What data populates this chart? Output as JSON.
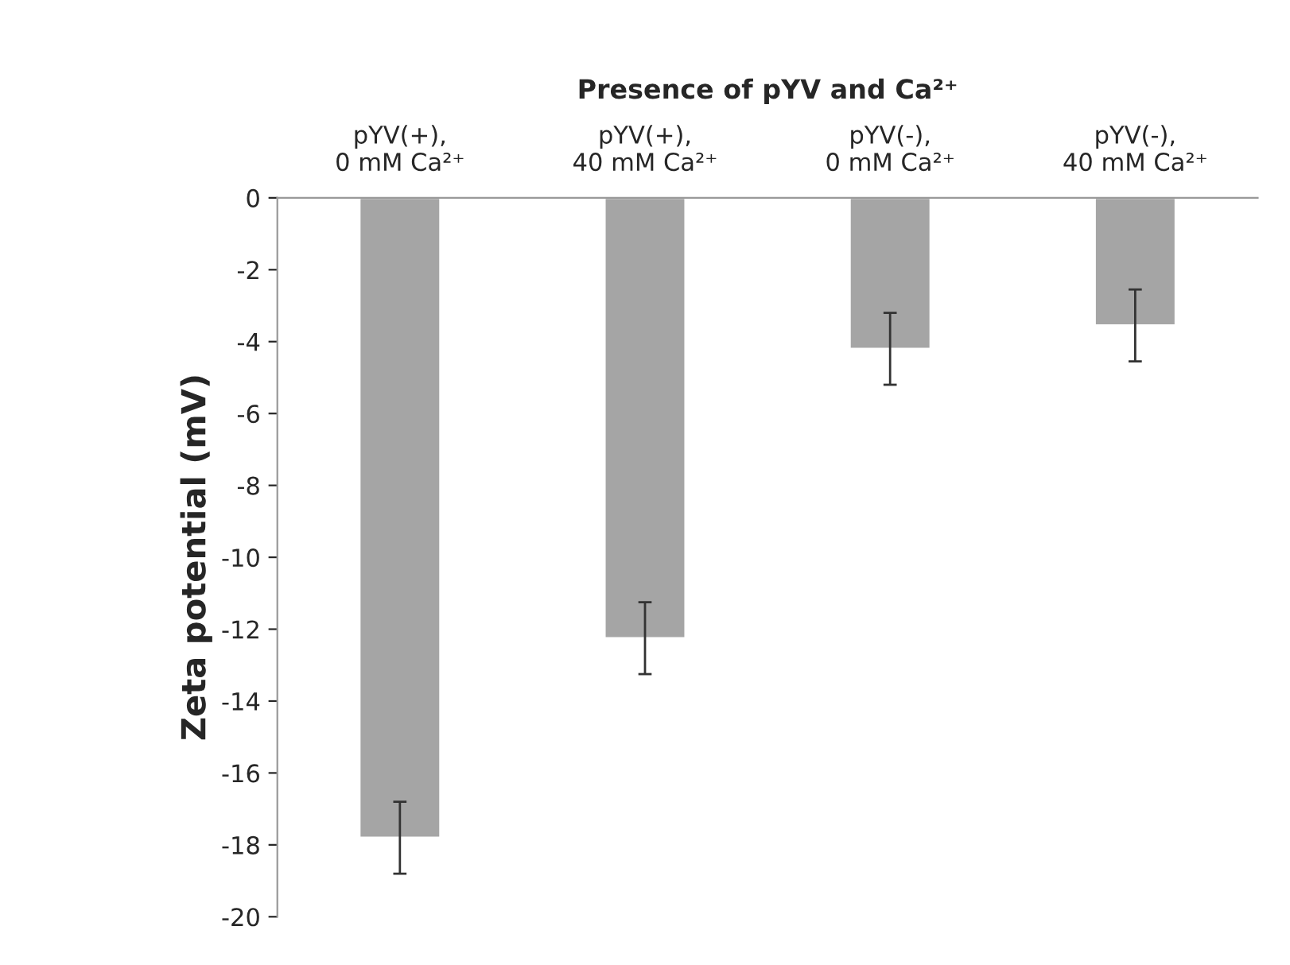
{
  "chart_data": {
    "type": "bar",
    "xlabel": "Presence of pYV and Ca²⁺",
    "ylabel": "Zeta potential (mV)",
    "categories": [
      "pYV(+),\n0 mM Ca²⁺",
      "pYV(+),\n40 mM Ca²⁺",
      "pYV(-),\n0 mM Ca²⁺",
      "pYV(-),\n40 mM Ca²⁺"
    ],
    "values": [
      -17.8,
      -12.25,
      -4.2,
      -3.55
    ],
    "errors": [
      1,
      1,
      1,
      1
    ],
    "color": "#a5a5a5",
    "ylim": [
      -20,
      0
    ],
    "yticks": [
      -20,
      -18,
      -16,
      -14,
      -12,
      -10,
      -8,
      -6,
      -4,
      -2,
      0
    ],
    "grid": false,
    "legend": false
  }
}
